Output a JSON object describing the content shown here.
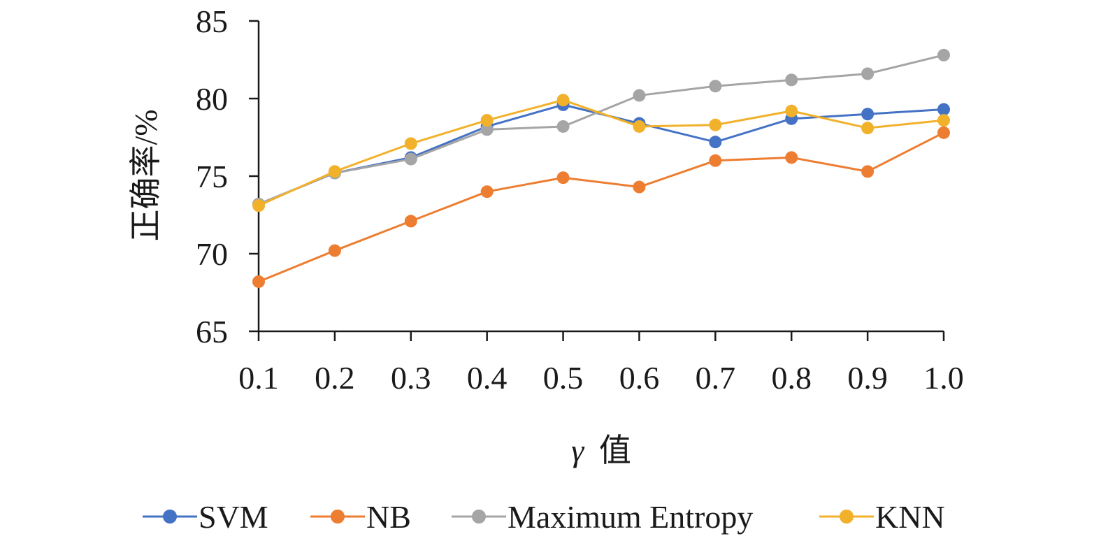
{
  "chart_data": {
    "type": "line",
    "title": "",
    "xlabel_symbol": "γ",
    "xlabel_text": "值",
    "ylabel": "正确率/%",
    "x": [
      0.1,
      0.2,
      0.3,
      0.4,
      0.5,
      0.6,
      0.7,
      0.8,
      0.9,
      1.0
    ],
    "x_tick_labels": [
      "0.1",
      "0.2",
      "0.3",
      "0.4",
      "0.5",
      "0.6",
      "0.7",
      "0.8",
      "0.9",
      "1.0"
    ],
    "ylim": [
      65,
      85
    ],
    "y_ticks": [
      65,
      70,
      75,
      80,
      85
    ],
    "grid": false,
    "legend_position": "bottom",
    "series": [
      {
        "name": "SVM",
        "color": "#4472C4",
        "values": [
          73.2,
          75.2,
          76.2,
          78.2,
          79.6,
          78.4,
          77.2,
          78.7,
          79.0,
          79.3
        ]
      },
      {
        "name": "NB",
        "color": "#ED7D31",
        "values": [
          68.2,
          70.2,
          72.1,
          74.0,
          74.9,
          74.3,
          76.0,
          76.2,
          75.3,
          77.8
        ]
      },
      {
        "name": "Maximum Entropy",
        "color": "#A5A5A5",
        "values": [
          73.2,
          75.2,
          76.1,
          78.0,
          78.2,
          80.2,
          80.8,
          81.2,
          81.6,
          82.8
        ]
      },
      {
        "name": "KNN",
        "color": "#F2B12B",
        "values": [
          73.1,
          75.3,
          77.1,
          78.6,
          79.9,
          78.2,
          78.3,
          79.2,
          78.1,
          78.6
        ]
      }
    ]
  }
}
